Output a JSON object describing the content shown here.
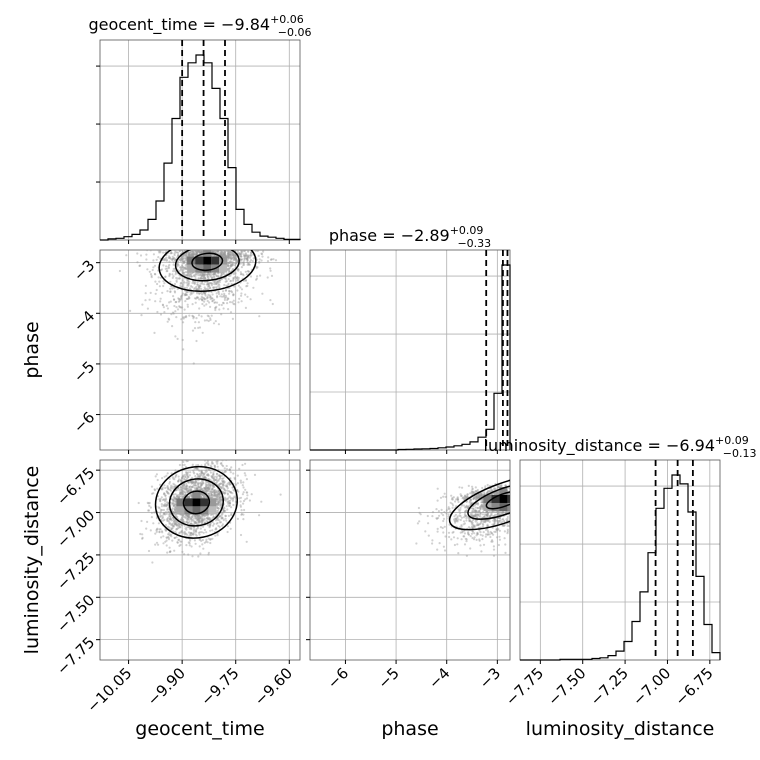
{
  "chart_data": {
    "type": "corner",
    "parameters": [
      "geocent_time",
      "phase",
      "luminosity_distance"
    ],
    "titles": {
      "geocent_time": {
        "label": "geocent_time",
        "median": "−9.84",
        "plus": "+0.06",
        "minus": "−0.06"
      },
      "phase": {
        "label": "phase",
        "median": "−2.89",
        "plus": "+0.09",
        "minus": "−0.33"
      },
      "luminosity_distance": {
        "label": "luminosity_distance",
        "median": "−6.94",
        "plus": "+0.09",
        "minus": "−0.13"
      }
    },
    "ranges": {
      "geocent_time": [
        -10.13,
        -9.57
      ],
      "phase": [
        -6.7,
        -2.75
      ],
      "luminosity_distance": [
        -7.87,
        -6.69
      ]
    },
    "ticks": {
      "geocent_time": [
        {
          "v": -10.05,
          "label": "−10.05"
        },
        {
          "v": -9.9,
          "label": "−9.90"
        },
        {
          "v": -9.75,
          "label": "−9.75"
        },
        {
          "v": -9.6,
          "label": "−9.60"
        }
      ],
      "phase": [
        {
          "v": -6,
          "label": "−6"
        },
        {
          "v": -5,
          "label": "−5"
        },
        {
          "v": -4,
          "label": "−4"
        },
        {
          "v": -3,
          "label": "−3"
        }
      ],
      "luminosity_distance": [
        {
          "v": -7.75,
          "label": "−7.75"
        },
        {
          "v": -7.5,
          "label": "−7.50"
        },
        {
          "v": -7.25,
          "label": "−7.25"
        },
        {
          "v": -7.0,
          "label": "−7.00"
        },
        {
          "v": -6.75,
          "label": "−6.75"
        }
      ]
    },
    "quantiles": {
      "geocent_time": [
        -9.9,
        -9.84,
        -9.78
      ],
      "phase": [
        -3.22,
        -2.89,
        -2.8
      ],
      "luminosity_distance": [
        -7.07,
        -6.94,
        -6.85
      ]
    },
    "hist_1d": {
      "geocent_time": {
        "edges_start": -10.13,
        "edges_step": 0.0224,
        "counts": [
          0,
          2,
          3,
          6,
          10,
          18,
          37,
          70,
          138,
          218,
          292,
          318,
          332,
          318,
          272,
          218,
          130,
          55,
          28,
          14,
          7,
          5,
          3,
          1,
          1
        ]
      },
      "phase": {
        "edges_start": -6.7,
        "edges_step": 0.158,
        "counts": [
          0,
          0,
          0,
          0,
          0,
          0,
          0,
          0,
          0,
          0,
          0,
          2,
          3,
          4,
          5,
          6,
          9,
          12,
          17,
          23,
          33,
          52,
          84,
          230,
          750
        ]
      },
      "luminosity_distance": {
        "edges_start": -7.87,
        "edges_step": 0.0472,
        "counts": [
          0,
          0,
          0,
          0,
          0,
          1,
          1,
          1,
          1,
          2,
          3,
          6,
          12,
          25,
          52,
          92,
          145,
          205,
          232,
          250,
          238,
          200,
          113,
          48,
          10
        ]
      }
    },
    "density_2d": [
      {
        "x": "geocent_time",
        "y": "phase",
        "center": [
          -9.83,
          -2.96
        ],
        "sd": [
          0.065,
          0.5
        ],
        "rho": 0.15,
        "n": 2000,
        "skew": "up"
      },
      {
        "x": "geocent_time",
        "y": "luminosity_distance",
        "center": [
          -9.86,
          -6.94
        ],
        "sd": [
          0.055,
          0.11
        ],
        "rho": 0.3,
        "n": 2000,
        "skew": "none"
      },
      {
        "x": "phase",
        "y": "luminosity_distance",
        "center": [
          -2.88,
          -6.92
        ],
        "sd": [
          0.55,
          0.11
        ],
        "rho": 0.5,
        "n": 2000,
        "skew": "up"
      }
    ],
    "grid": true
  }
}
